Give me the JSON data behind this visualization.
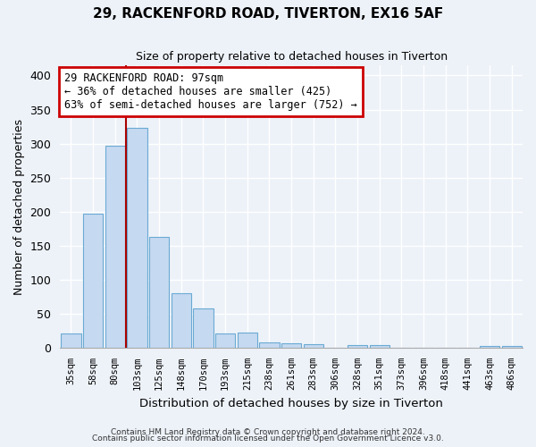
{
  "title1": "29, RACKENFORD ROAD, TIVERTON, EX16 5AF",
  "title2": "Size of property relative to detached houses in Tiverton",
  "xlabel": "Distribution of detached houses by size in Tiverton",
  "ylabel": "Number of detached properties",
  "bar_labels": [
    "35sqm",
    "58sqm",
    "80sqm",
    "103sqm",
    "125sqm",
    "148sqm",
    "170sqm",
    "193sqm",
    "215sqm",
    "238sqm",
    "261sqm",
    "283sqm",
    "306sqm",
    "328sqm",
    "351sqm",
    "373sqm",
    "396sqm",
    "418sqm",
    "441sqm",
    "463sqm",
    "486sqm"
  ],
  "bar_heights": [
    21,
    197,
    297,
    323,
    163,
    80,
    58,
    21,
    22,
    8,
    6,
    5,
    0,
    4,
    4,
    0,
    0,
    0,
    0,
    3,
    3
  ],
  "bar_color": "#c5d9f0",
  "bar_edgecolor": "#6aaad4",
  "vline_x": 2.5,
  "property_line_label": "29 RACKENFORD ROAD: 97sqm",
  "annotation_line1": "← 36% of detached houses are smaller (425)",
  "annotation_line2": "63% of semi-detached houses are larger (752) →",
  "vline_color": "#aa0000",
  "yticks": [
    0,
    50,
    100,
    150,
    200,
    250,
    300,
    350,
    400
  ],
  "ylim": [
    0,
    415
  ],
  "footer1": "Contains HM Land Registry data © Crown copyright and database right 2024.",
  "footer2": "Contains public sector information licensed under the Open Government Licence v3.0.",
  "bg_color": "#edf2f9",
  "grid_color": "#ffffff",
  "annotation_box_color": "#cc0000"
}
